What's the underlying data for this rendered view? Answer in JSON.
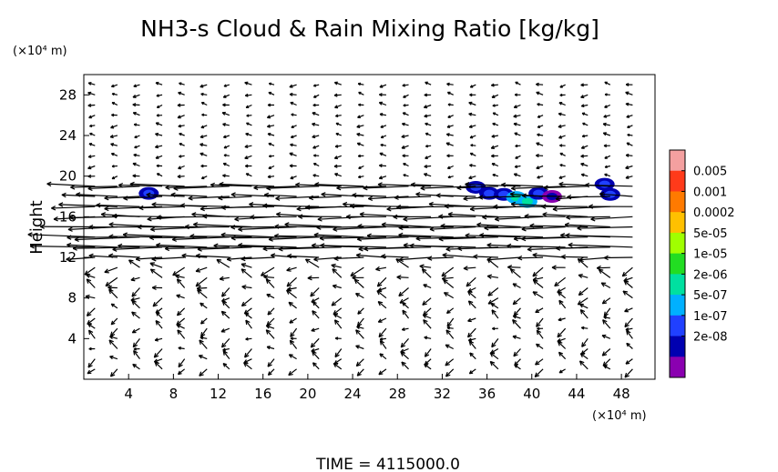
{
  "chart_data": {
    "type": "contour-vector",
    "title": "NH3-s Cloud & Rain Mixing Ratio [kg/kg]",
    "ylabel": "Height",
    "xunit": "(×10⁴ m)",
    "yunit": "(×10⁴ m)",
    "xlim": [
      0,
      51
    ],
    "ylim": [
      0,
      30
    ],
    "xticks": [
      "4",
      "8",
      "12",
      "16",
      "20",
      "24",
      "28",
      "32",
      "36",
      "40",
      "44",
      "48"
    ],
    "yticks": [
      "4",
      "8",
      "12",
      "16",
      "20",
      "24",
      "28"
    ],
    "grid": false,
    "time_label": "TIME = 4115000.0",
    "colorbar": {
      "labels": [
        "0.005",
        "0.001",
        "0.0002",
        "5e-05",
        "1e-05",
        "2e-06",
        "5e-07",
        "1e-07",
        "2e-08"
      ],
      "colors": [
        "#f4a0a0",
        "#ff3a1a",
        "#ff7a00",
        "#ffc000",
        "#a0ff00",
        "#22dd22",
        "#00e0a0",
        "#00b0ff",
        "#2040ff",
        "#0000b0",
        "#8a00b0"
      ]
    },
    "cloud_patches": [
      {
        "x": 35.0,
        "y": 18.9,
        "level": "1e-07"
      },
      {
        "x": 36.2,
        "y": 18.3,
        "level": "1e-07"
      },
      {
        "x": 37.5,
        "y": 18.2,
        "level": "1e-07"
      },
      {
        "x": 38.6,
        "y": 17.9,
        "level": "2e-06"
      },
      {
        "x": 39.6,
        "y": 17.5,
        "level": "2e-06"
      },
      {
        "x": 40.6,
        "y": 18.3,
        "level": "1e-07"
      },
      {
        "x": 41.8,
        "y": 18.0,
        "level": "2e-08"
      },
      {
        "x": 46.5,
        "y": 19.2,
        "level": "1e-07"
      },
      {
        "x": 47.0,
        "y": 18.2,
        "level": "1e-07"
      },
      {
        "x": 5.8,
        "y": 18.3,
        "level": "1e-07"
      }
    ],
    "wind_profile": [
      {
        "y": 19.2,
        "u": -3.5
      },
      {
        "y": 18.1,
        "u": -2.5
      },
      {
        "y": 17.0,
        "u": -3.5
      },
      {
        "y": 16.0,
        "u": -3.0
      },
      {
        "y": 15.0,
        "u": -3.5
      },
      {
        "y": 14.0,
        "u": -4.0
      },
      {
        "y": 13.0,
        "u": -4.0
      },
      {
        "y": 12.0,
        "u": -2.0
      },
      {
        "y": 11.0,
        "u": -0.8
      },
      {
        "y": 10.0,
        "u": -0.7
      },
      {
        "y": 9.0,
        "u": -0.6
      },
      {
        "y": 8.0,
        "u": -0.6
      }
    ]
  }
}
